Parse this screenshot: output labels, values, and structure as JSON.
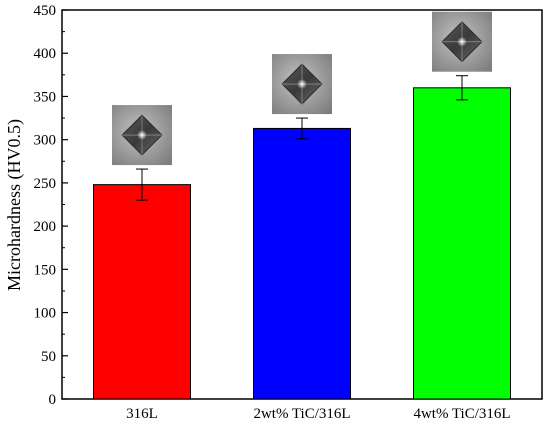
{
  "chart_data": {
    "type": "bar",
    "categories": [
      "316L",
      "2wt% TiC/316L",
      "4wt% TiC/316L"
    ],
    "values": [
      248,
      313,
      360
    ],
    "errors": [
      18,
      12,
      14
    ],
    "colors": [
      "#ff0000",
      "#0000ff",
      "#00ff00"
    ],
    "xlabel": "",
    "ylabel": "Microhardness (HV0.5)",
    "ylim": [
      0,
      450
    ],
    "yticks": [
      0,
      50,
      100,
      150,
      200,
      250,
      300,
      350,
      400,
      450
    ],
    "grid": false,
    "legend": "none",
    "insets": [
      "indentation-micrograph",
      "indentation-micrograph",
      "indentation-micrograph"
    ]
  }
}
